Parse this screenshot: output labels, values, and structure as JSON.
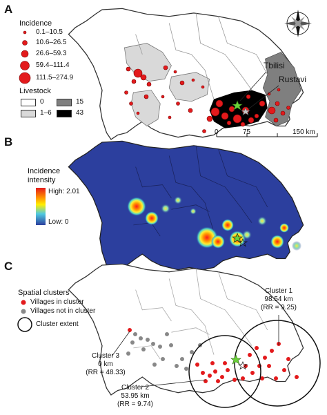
{
  "panels": {
    "a": {
      "letter": "A",
      "incidence": {
        "title": "Incidence",
        "classes": [
          "0.1–10.5",
          "10.6–26.5",
          "26.6–59.3",
          "59.4–111.4",
          "111.5–274.9"
        ]
      },
      "livestock": {
        "title": "Livestock",
        "classes": [
          {
            "label": "0",
            "color": "#ffffff"
          },
          {
            "label": "1–6",
            "color": "#d9d9d9"
          },
          {
            "label": "15",
            "color": "#7f7f7f"
          },
          {
            "label": "43",
            "color": "#000000"
          }
        ]
      },
      "cities": {
        "tbilisi": "Tbilisi",
        "rustavi": "Rustavi"
      },
      "scale": {
        "ticks": [
          "0",
          "75",
          "150 km"
        ]
      }
    },
    "b": {
      "letter": "B",
      "title_line1": "Incidence",
      "title_line2": "intensity",
      "high": "High: 2.01",
      "low": "Low: 0"
    },
    "c": {
      "letter": "C",
      "legend_title": "Spatial clusters",
      "in_cluster": "Villages in cluster",
      "not_in_cluster": "Villages not in cluster",
      "extent": "Cluster extent",
      "clusters": [
        {
          "name": "Cluster 1",
          "radius": "98.54 km",
          "rr": "(RR = 9.25)"
        },
        {
          "name": "Cluster 2",
          "radius": "53.95 km",
          "rr": "(RR = 9.74)"
        },
        {
          "name": "Cluster 3",
          "radius": "0 km",
          "rr": "(RR = 48.33)"
        }
      ]
    }
  },
  "colors": {
    "case": "#e31a1c",
    "grey_village": "#888888",
    "map_blue": "#2c3f9e"
  }
}
